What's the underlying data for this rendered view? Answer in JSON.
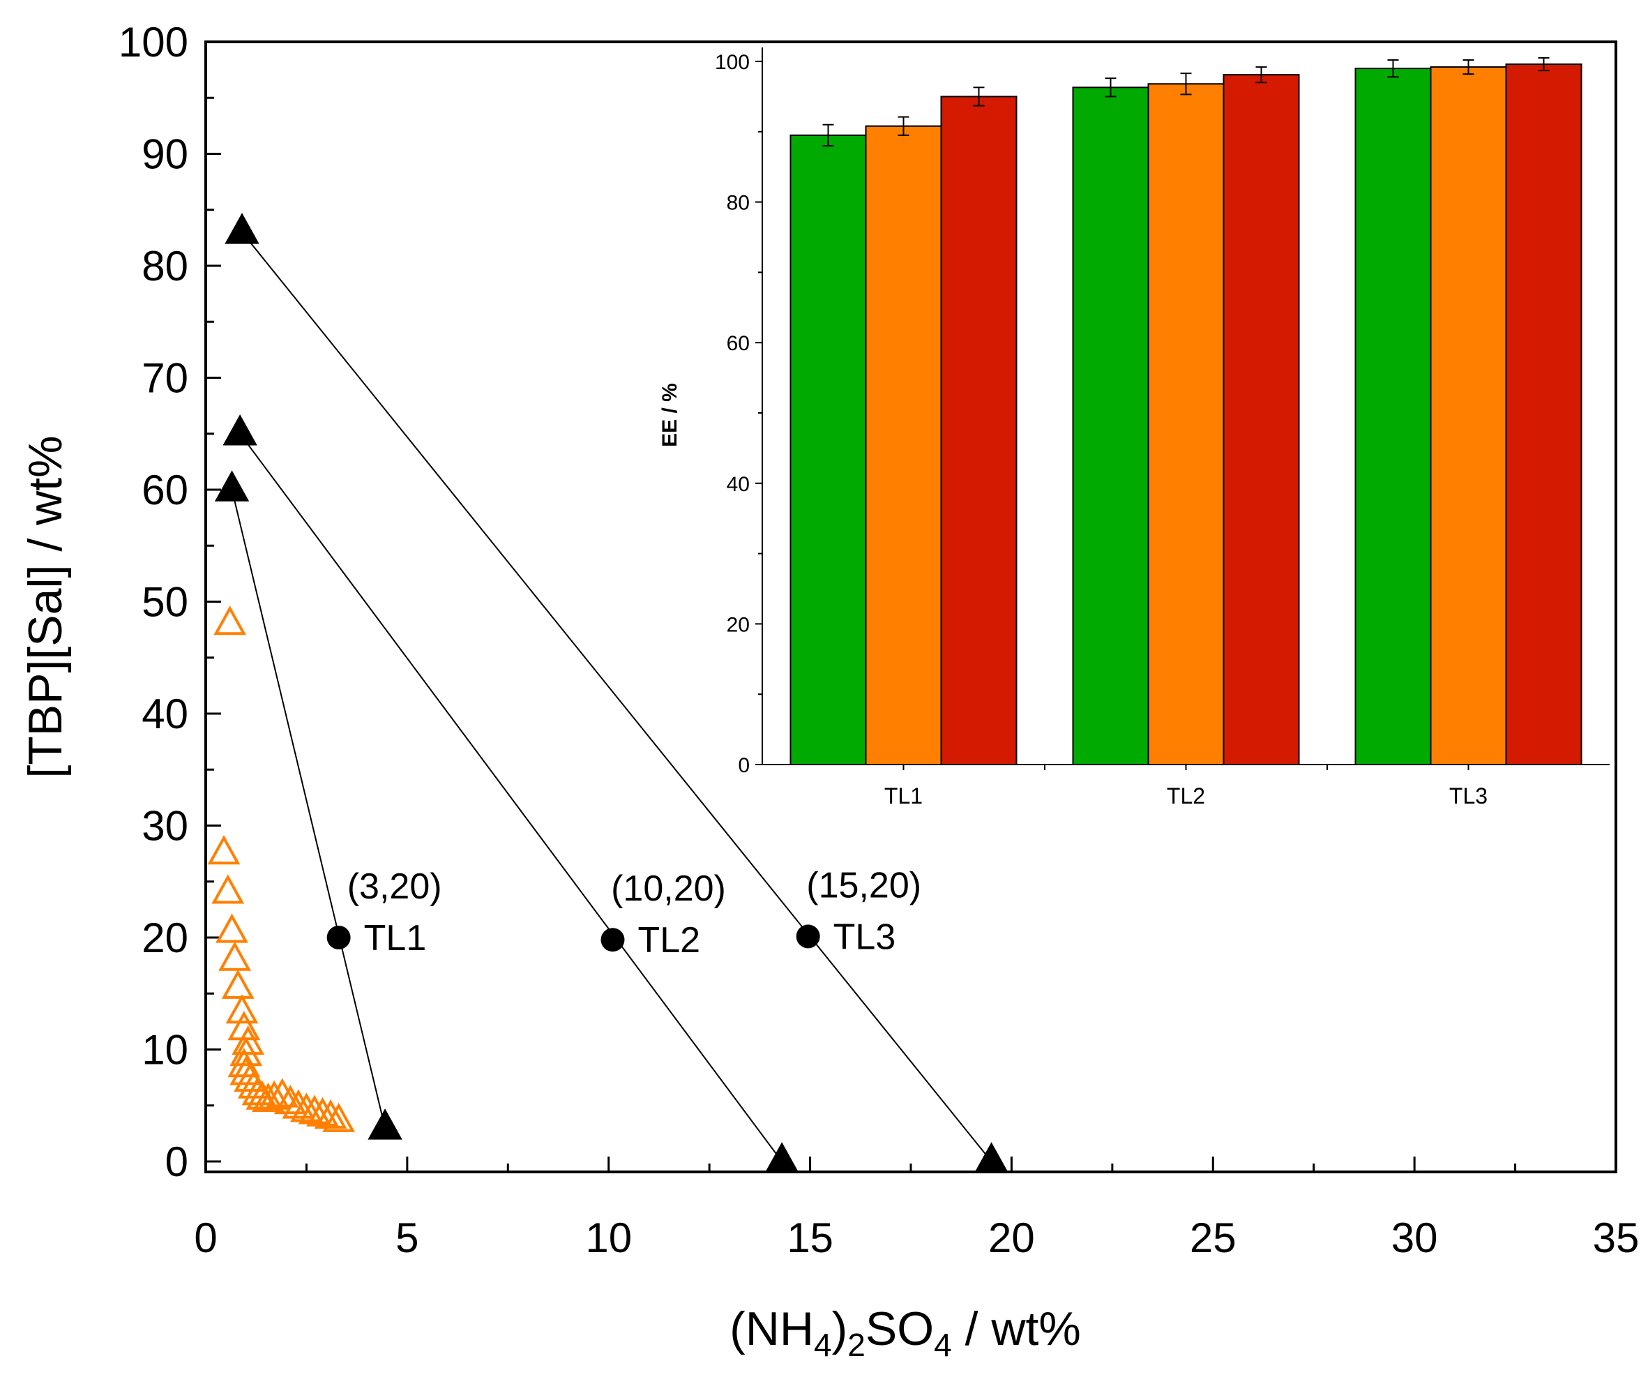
{
  "chart_data": [
    {
      "type": "scatter",
      "name": "main",
      "xlabel": {
        "pre": "(NH",
        "sub1": "4",
        "mid": ")",
        "sub2": "2",
        "mid2": "SO",
        "sub3": "4",
        "post": " / wt%"
      },
      "ylabel": "[TBP][Sal] / wt%",
      "xlim": [
        0,
        35
      ],
      "ylim": [
        0,
        100
      ],
      "x_ticks": [
        0,
        5,
        10,
        15,
        20,
        25,
        30,
        35
      ],
      "y_ticks": [
        0,
        10,
        20,
        30,
        40,
        50,
        60,
        70,
        80,
        90,
        100
      ],
      "colors": {
        "binodal": "#ff8000",
        "tie": "#000000"
      },
      "binodal": {
        "x": [
          0.6,
          0.45,
          0.55,
          0.65,
          0.72,
          0.8,
          0.9,
          0.95,
          1.05,
          1.0,
          0.95,
          1.0,
          1.1,
          1.2,
          1.3,
          1.4,
          1.55,
          1.7,
          1.9,
          2.1,
          2.3,
          2.5,
          2.7,
          2.9,
          3.1,
          3.3
        ],
        "y": [
          48,
          27.5,
          24,
          20.5,
          18,
          15.5,
          13.3,
          11.8,
          10.5,
          9.5,
          8.5,
          7.8,
          7.2,
          6.6,
          6.0,
          5.6,
          5.4,
          5.6,
          5.8,
          5.2,
          4.8,
          4.5,
          4.3,
          4.1,
          3.9,
          3.6
        ]
      },
      "tie_lines": [
        {
          "label": "TL1",
          "point_label": "(3,20)",
          "mix": [
            3.3,
            20
          ],
          "top": [
            0.65,
            60
          ],
          "bottom": [
            4.45,
            3
          ]
        },
        {
          "label": "TL2",
          "point_label": "(10,20)",
          "mix": [
            10.1,
            19.8
          ],
          "top": [
            0.85,
            65
          ],
          "bottom": [
            14.3,
            0
          ]
        },
        {
          "label": "TL3",
          "point_label": "(15,20)",
          "mix": [
            14.95,
            20.1
          ],
          "top": [
            0.9,
            83
          ],
          "bottom": [
            19.5,
            0
          ]
        }
      ]
    },
    {
      "type": "bar",
      "name": "inset",
      "ylabel": "EE / %",
      "ylim": [
        0,
        100
      ],
      "y_ticks": [
        0,
        20,
        40,
        60,
        80,
        100
      ],
      "categories": [
        "TL1",
        "TL2",
        "TL3"
      ],
      "series": [
        {
          "color": "#00aa00",
          "values": [
            89.5,
            96.3,
            99.0
          ],
          "errors": [
            1.5,
            1.3,
            1.2
          ]
        },
        {
          "color": "#ff8000",
          "values": [
            90.8,
            96.8,
            99.2
          ],
          "errors": [
            1.3,
            1.5,
            1.0
          ]
        },
        {
          "color": "#d41a00",
          "values": [
            95.0,
            98.1,
            99.6
          ],
          "errors": [
            1.3,
            1.1,
            0.9
          ]
        }
      ]
    }
  ]
}
